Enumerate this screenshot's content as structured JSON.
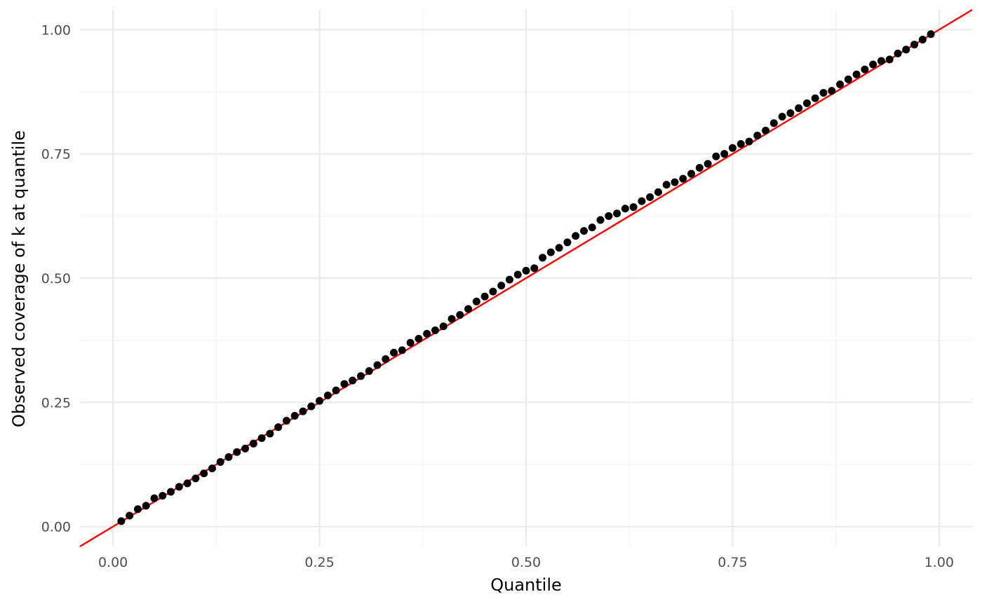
{
  "chart_data": {
    "type": "scatter",
    "title": "",
    "xlabel": "Quantile",
    "ylabel": "Observed coverage of k at quantile",
    "xlim": [
      -0.04,
      1.04
    ],
    "ylim": [
      -0.04,
      1.04
    ],
    "x_ticks": [
      {
        "value": 0.0,
        "label": "0.00"
      },
      {
        "value": 0.25,
        "label": "0.25"
      },
      {
        "value": 0.5,
        "label": "0.50"
      },
      {
        "value": 0.75,
        "label": "0.75"
      },
      {
        "value": 1.0,
        "label": "1.00"
      }
    ],
    "y_ticks": [
      {
        "value": 0.0,
        "label": "0.00"
      },
      {
        "value": 0.25,
        "label": "0.25"
      },
      {
        "value": 0.5,
        "label": "0.50"
      },
      {
        "value": 0.75,
        "label": "0.75"
      },
      {
        "value": 1.0,
        "label": "1.00"
      }
    ],
    "grid": true,
    "legend": "none",
    "point_color": "#000000",
    "reference_line": {
      "slope": 1,
      "intercept": 0,
      "color": "#ff0000"
    },
    "points": [
      [
        0.01,
        0.011
      ],
      [
        0.02,
        0.022
      ],
      [
        0.03,
        0.035
      ],
      [
        0.04,
        0.042
      ],
      [
        0.05,
        0.057
      ],
      [
        0.06,
        0.062
      ],
      [
        0.07,
        0.07
      ],
      [
        0.08,
        0.08
      ],
      [
        0.09,
        0.087
      ],
      [
        0.1,
        0.097
      ],
      [
        0.11,
        0.107
      ],
      [
        0.12,
        0.117
      ],
      [
        0.13,
        0.13
      ],
      [
        0.14,
        0.14
      ],
      [
        0.15,
        0.15
      ],
      [
        0.16,
        0.157
      ],
      [
        0.17,
        0.167
      ],
      [
        0.18,
        0.178
      ],
      [
        0.19,
        0.187
      ],
      [
        0.2,
        0.2
      ],
      [
        0.21,
        0.213
      ],
      [
        0.22,
        0.223
      ],
      [
        0.23,
        0.232
      ],
      [
        0.24,
        0.242
      ],
      [
        0.25,
        0.253
      ],
      [
        0.26,
        0.264
      ],
      [
        0.27,
        0.274
      ],
      [
        0.28,
        0.287
      ],
      [
        0.29,
        0.294
      ],
      [
        0.3,
        0.303
      ],
      [
        0.31,
        0.313
      ],
      [
        0.32,
        0.325
      ],
      [
        0.33,
        0.337
      ],
      [
        0.34,
        0.35
      ],
      [
        0.35,
        0.355
      ],
      [
        0.36,
        0.37
      ],
      [
        0.37,
        0.378
      ],
      [
        0.38,
        0.388
      ],
      [
        0.39,
        0.395
      ],
      [
        0.4,
        0.403
      ],
      [
        0.41,
        0.418
      ],
      [
        0.42,
        0.426
      ],
      [
        0.43,
        0.438
      ],
      [
        0.44,
        0.453
      ],
      [
        0.45,
        0.463
      ],
      [
        0.46,
        0.473
      ],
      [
        0.47,
        0.485
      ],
      [
        0.48,
        0.497
      ],
      [
        0.49,
        0.507
      ],
      [
        0.5,
        0.515
      ],
      [
        0.51,
        0.52
      ],
      [
        0.52,
        0.541
      ],
      [
        0.53,
        0.552
      ],
      [
        0.54,
        0.561
      ],
      [
        0.55,
        0.572
      ],
      [
        0.56,
        0.585
      ],
      [
        0.57,
        0.595
      ],
      [
        0.58,
        0.602
      ],
      [
        0.59,
        0.617
      ],
      [
        0.6,
        0.625
      ],
      [
        0.61,
        0.63
      ],
      [
        0.62,
        0.64
      ],
      [
        0.63,
        0.643
      ],
      [
        0.64,
        0.655
      ],
      [
        0.65,
        0.663
      ],
      [
        0.66,
        0.673
      ],
      [
        0.67,
        0.688
      ],
      [
        0.68,
        0.693
      ],
      [
        0.69,
        0.7
      ],
      [
        0.7,
        0.71
      ],
      [
        0.71,
        0.722
      ],
      [
        0.72,
        0.73
      ],
      [
        0.73,
        0.745
      ],
      [
        0.74,
        0.75
      ],
      [
        0.75,
        0.762
      ],
      [
        0.76,
        0.77
      ],
      [
        0.77,
        0.775
      ],
      [
        0.78,
        0.787
      ],
      [
        0.79,
        0.797
      ],
      [
        0.8,
        0.812
      ],
      [
        0.81,
        0.825
      ],
      [
        0.82,
        0.832
      ],
      [
        0.83,
        0.842
      ],
      [
        0.84,
        0.852
      ],
      [
        0.85,
        0.862
      ],
      [
        0.86,
        0.873
      ],
      [
        0.87,
        0.877
      ],
      [
        0.88,
        0.89
      ],
      [
        0.89,
        0.9
      ],
      [
        0.9,
        0.91
      ],
      [
        0.91,
        0.92
      ],
      [
        0.92,
        0.93
      ],
      [
        0.93,
        0.937
      ],
      [
        0.94,
        0.94
      ],
      [
        0.95,
        0.952
      ],
      [
        0.96,
        0.96
      ],
      [
        0.97,
        0.97
      ],
      [
        0.98,
        0.98
      ],
      [
        0.99,
        0.991
      ]
    ]
  }
}
